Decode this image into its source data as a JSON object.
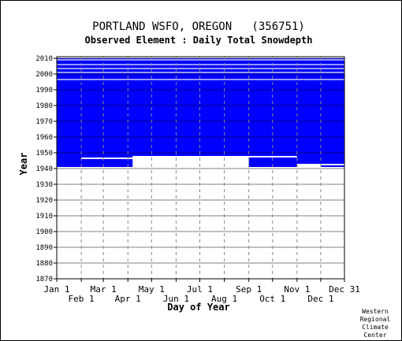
{
  "chart_data": {
    "type": "heatmap",
    "title": "PORTLAND WSFO, OREGON   (356751)",
    "subtitle": "Observed Element : Daily Total Snowdepth",
    "xlabel": "Day of Year",
    "ylabel": "Year",
    "xlim": [
      1,
      365
    ],
    "ylim": [
      1870,
      2011
    ],
    "x_ticks_top_row": [
      {
        "label": "Jan 1",
        "day": 1
      },
      {
        "label": "Mar 1",
        "day": 60
      },
      {
        "label": "May 1",
        "day": 121
      },
      {
        "label": "Jul 1",
        "day": 182
      },
      {
        "label": "Sep 1",
        "day": 244
      },
      {
        "label": "Nov 1",
        "day": 305
      },
      {
        "label": "Dec 31",
        "day": 365
      }
    ],
    "x_ticks_bottom_row": [
      {
        "label": "Feb 1",
        "day": 32
      },
      {
        "label": "Apr 1",
        "day": 91
      },
      {
        "label": "Jun 1",
        "day": 152
      },
      {
        "label": "Aug 1",
        "day": 213
      },
      {
        "label": "Oct 1",
        "day": 274
      },
      {
        "label": "Dec 1",
        "day": 335
      }
    ],
    "y_ticks": [
      2010,
      2000,
      1990,
      1980,
      1970,
      1960,
      1950,
      1940,
      1930,
      1920,
      1910,
      1900,
      1890,
      1880,
      1870
    ],
    "grid": true,
    "data_color": "#0000ff",
    "missing_color": "#ffffff",
    "coverage_blocks": [
      {
        "day_start": 1,
        "day_end": 365,
        "year_start": 1948,
        "year_end": 1996
      },
      {
        "day_start": 1,
        "day_end": 32,
        "year_start": 1941,
        "year_end": 1948
      },
      {
        "day_start": 32,
        "day_end": 97,
        "year_start": 1947,
        "year_end": 1948
      },
      {
        "day_start": 32,
        "day_end": 97,
        "year_start": 1941,
        "year_end": 1946
      },
      {
        "day_start": 244,
        "day_end": 305,
        "year_start": 1941,
        "year_end": 1947
      },
      {
        "day_start": 305,
        "day_end": 365,
        "year_start": 1943,
        "year_end": 1948
      },
      {
        "day_start": 335,
        "day_end": 365,
        "year_start": 1941,
        "year_end": 1942
      },
      {
        "day_start": 1,
        "day_end": 365,
        "year_start": 1996,
        "year_end": 2010
      }
    ],
    "missing_year_lines": [
      1996.5,
      2001,
      2003.5,
      2006,
      2009
    ],
    "credit": [
      "Western",
      "Regional",
      "Climate",
      "Center"
    ]
  }
}
